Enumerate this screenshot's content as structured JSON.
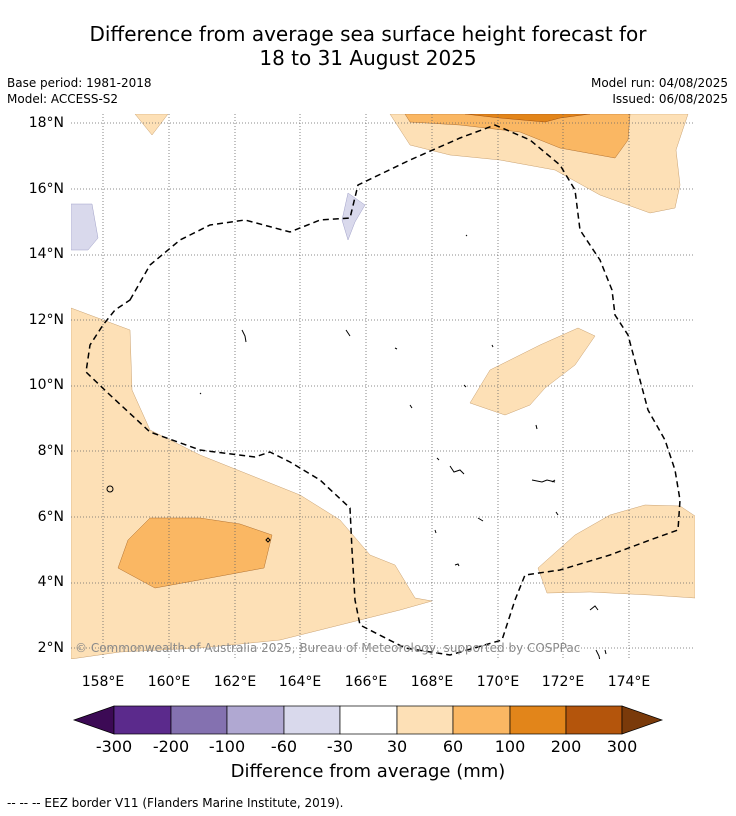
{
  "title": {
    "line1": "Difference from average sea surface height forecast for",
    "line2": "18 to 31 August 2025"
  },
  "meta": {
    "base_period": "Base period: 1981-2018",
    "model": "Model: ACCESS-S2",
    "model_run": "Model run: 04/08/2025",
    "issued": "Issued: 06/08/2025"
  },
  "map": {
    "lat_labels": [
      "18°N",
      "16°N",
      "14°N",
      "12°N",
      "10°N",
      "8°N",
      "6°N",
      "4°N",
      "2°N"
    ],
    "lon_labels": [
      "158°E",
      "160°E",
      "162°E",
      "164°E",
      "166°E",
      "168°E",
      "170°E",
      "172°E",
      "174°E"
    ],
    "credit": "© Commonwealth of Australia 2025, Bureau of Meteorology, supported by COSPPac"
  },
  "colorbar": {
    "ticks": [
      "-300",
      "-200",
      "-100",
      "-60",
      "-30",
      "30",
      "60",
      "100",
      "200",
      "300"
    ],
    "colors": [
      "#3c0a55",
      "#5b2a8c",
      "#8471b0",
      "#b0a8d2",
      "#d9d9ec",
      "#ffffff",
      "#fde0b6",
      "#fab763",
      "#e2851a",
      "#b4550c",
      "#7a3a0a"
    ],
    "label": "Difference from average (mm)"
  },
  "footnote": "--  --  -- EEZ border V11 (Flanders Marine Institute, 2019)."
}
